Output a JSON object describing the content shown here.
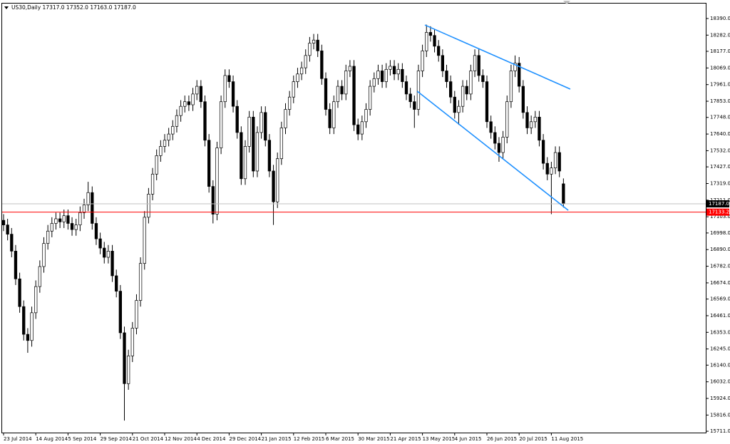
{
  "chart_data": {
    "type": "candlestick",
    "title": "US30,Daily  17317.0 17352.0 17163.0 17187.0",
    "categories": [
      "23 Jul 2014",
      null,
      null,
      null,
      null,
      null,
      null,
      null,
      "14 Aug 2014",
      null,
      null,
      null,
      null,
      null,
      null,
      null,
      "5 Sep 2014",
      null,
      null,
      null,
      null,
      null,
      null,
      null,
      "29 Sep 2014",
      null,
      null,
      null,
      null,
      null,
      null,
      null,
      "21 Oct 2014",
      null,
      null,
      null,
      null,
      null,
      null,
      null,
      "12 Nov 2014",
      null,
      null,
      null,
      null,
      null,
      null,
      null,
      "4 Dec 2014",
      null,
      null,
      null,
      null,
      null,
      null,
      null,
      "29 Dec 2014",
      null,
      null,
      null,
      null,
      null,
      null,
      null,
      "21 Jan 2015",
      null,
      null,
      null,
      null,
      null,
      null,
      null,
      "12 Feb 2015",
      null,
      null,
      null,
      null,
      null,
      null,
      null,
      "6 Mar 2015",
      null,
      null,
      null,
      null,
      null,
      null,
      null,
      "30 Mar 2015",
      null,
      null,
      null,
      null,
      null,
      null,
      null,
      "21 Apr 2015",
      null,
      null,
      null,
      null,
      null,
      null,
      null,
      "13 May 2015",
      null,
      null,
      null,
      null,
      null,
      null,
      null,
      "4 Jun 2015",
      null,
      null,
      null,
      null,
      null,
      null,
      null,
      "26 Jun 2015",
      null,
      null,
      null,
      null,
      null,
      null,
      null,
      "20 Jul 2015",
      null,
      null,
      null,
      null,
      null,
      null,
      null,
      "11 Aug 2015",
      null,
      null,
      null
    ],
    "open": [
      17080,
      17050,
      16990,
      16880,
      16700,
      16520,
      16340,
      16300,
      16480,
      16650,
      16780,
      16930,
      17010,
      17060,
      17090,
      17070,
      17110,
      17060,
      17020,
      17050,
      17130,
      17180,
      17260,
      17060,
      16960,
      16900,
      16840,
      16880,
      16720,
      16620,
      16350,
      16020,
      16200,
      16380,
      16560,
      16800,
      17100,
      17250,
      17380,
      17500,
      17560,
      17600,
      17640,
      17690,
      17760,
      17820,
      17850,
      17830,
      17900,
      17950,
      17850,
      17600,
      17300,
      17120,
      17550,
      17850,
      18020,
      17980,
      17820,
      17650,
      17350,
      17560,
      17750,
      17400,
      17650,
      17780,
      17600,
      17400,
      17200,
      17480,
      17680,
      17800,
      17880,
      17980,
      18030,
      18070,
      18150,
      18230,
      18250,
      18180,
      18000,
      17800,
      17680,
      17850,
      17950,
      17900,
      18050,
      18080,
      17700,
      17640,
      17720,
      17800,
      17950,
      18000,
      18050,
      17980,
      18060,
      18080,
      18030,
      18060,
      17980,
      17900,
      17850,
      17800,
      18050,
      18180,
      18300,
      18280,
      18210,
      18150,
      18050,
      17980,
      17880,
      17780,
      17820,
      17950,
      17900,
      18050,
      18150,
      18020,
      17980,
      17720,
      17650,
      17580,
      17520,
      17620,
      17850,
      18050,
      18100,
      17950,
      17780,
      17680,
      17720,
      17750,
      17600,
      17450,
      17380,
      17420,
      17520,
      17317
    ],
    "high": [
      17120,
      17090,
      17030,
      16920,
      16740,
      16560,
      16380,
      16520,
      16690,
      16820,
      16970,
      17050,
      17100,
      17130,
      17130,
      17150,
      17150,
      17100,
      17090,
      17170,
      17220,
      17330,
      17300,
      17100,
      17000,
      16940,
      16920,
      16920,
      16760,
      16660,
      16390,
      16240,
      16420,
      16600,
      16840,
      17140,
      17290,
      17420,
      17540,
      17600,
      17640,
      17680,
      17730,
      17800,
      17860,
      17890,
      17890,
      17940,
      17990,
      17990,
      17890,
      17640,
      17340,
      17590,
      17890,
      18060,
      18060,
      18020,
      17860,
      17690,
      17600,
      17790,
      17790,
      17690,
      17820,
      17820,
      17640,
      17440,
      17520,
      17720,
      17840,
      17920,
      18020,
      18070,
      18110,
      18190,
      18270,
      18290,
      18290,
      18220,
      18040,
      17840,
      17890,
      17990,
      17990,
      18090,
      18120,
      18120,
      17740,
      17760,
      17840,
      17990,
      18040,
      18090,
      18090,
      18100,
      18120,
      18120,
      18100,
      18100,
      18020,
      17940,
      17890,
      18090,
      18220,
      18350,
      18340,
      18320,
      18250,
      18190,
      18090,
      18020,
      17920,
      17860,
      17990,
      17990,
      18090,
      18190,
      18190,
      18060,
      18020,
      17760,
      17690,
      17620,
      17660,
      17890,
      18090,
      18150,
      18140,
      17990,
      17820,
      17760,
      17790,
      17790,
      17640,
      17490,
      17460,
      17560,
      17560,
      17352
    ],
    "low": [
      17010,
      16950,
      16840,
      16660,
      16480,
      16300,
      16220,
      16260,
      16440,
      16610,
      16740,
      16890,
      16970,
      17020,
      17030,
      17030,
      17020,
      16980,
      16980,
      17010,
      17090,
      17140,
      17020,
      16920,
      16860,
      16800,
      16800,
      16680,
      16580,
      16310,
      15780,
      15980,
      16160,
      16340,
      16520,
      16760,
      17060,
      17210,
      17340,
      17460,
      17520,
      17560,
      17600,
      17650,
      17720,
      17780,
      17790,
      17790,
      17860,
      17810,
      17560,
      17260,
      17060,
      17080,
      17510,
      17810,
      17940,
      17780,
      17610,
      17310,
      17310,
      17520,
      17360,
      17360,
      17610,
      17560,
      17360,
      17050,
      17160,
      17440,
      17640,
      17760,
      17840,
      17940,
      17990,
      18030,
      18110,
      18190,
      18140,
      17960,
      17760,
      17640,
      17640,
      17810,
      17860,
      17860,
      18010,
      17660,
      17600,
      17600,
      17680,
      17760,
      17910,
      17960,
      17940,
      17940,
      18020,
      17990,
      17990,
      17940,
      17860,
      17810,
      17680,
      17760,
      18010,
      18140,
      18240,
      18170,
      18110,
      18010,
      17940,
      17840,
      17740,
      17700,
      17780,
      17860,
      17860,
      18010,
      17980,
      17940,
      17680,
      17610,
      17540,
      17460,
      17480,
      17580,
      17810,
      18010,
      17910,
      17740,
      17640,
      17640,
      17680,
      17560,
      17410,
      17340,
      17120,
      17380,
      17360,
      17163
    ],
    "close": [
      17050,
      16990,
      16880,
      16700,
      16520,
      16340,
      16300,
      16480,
      16650,
      16780,
      16930,
      17010,
      17060,
      17090,
      17070,
      17110,
      17060,
      17020,
      17050,
      17130,
      17180,
      17260,
      17060,
      16960,
      16900,
      16840,
      16880,
      16720,
      16620,
      16350,
      16020,
      16200,
      16380,
      16560,
      16800,
      17100,
      17250,
      17380,
      17500,
      17560,
      17600,
      17640,
      17690,
      17760,
      17820,
      17850,
      17830,
      17900,
      17950,
      17850,
      17600,
      17300,
      17120,
      17550,
      17850,
      18020,
      17980,
      17820,
      17650,
      17350,
      17560,
      17750,
      17400,
      17650,
      17780,
      17600,
      17400,
      17200,
      17480,
      17680,
      17800,
      17880,
      17980,
      18030,
      18070,
      18150,
      18230,
      18250,
      18180,
      18000,
      17800,
      17680,
      17850,
      17950,
      17900,
      18050,
      18080,
      17700,
      17640,
      17720,
      17800,
      17950,
      18000,
      18050,
      17980,
      18060,
      18080,
      18030,
      18060,
      17980,
      17900,
      17850,
      17800,
      18050,
      18180,
      18300,
      18280,
      18210,
      18150,
      18050,
      17980,
      17880,
      17780,
      17820,
      17950,
      17900,
      18050,
      18150,
      18020,
      17980,
      17720,
      17650,
      17580,
      17520,
      17620,
      17850,
      18050,
      18100,
      17950,
      17780,
      17680,
      17720,
      17750,
      17600,
      17450,
      17380,
      17420,
      17520,
      17400,
      17187
    ],
    "up_color": "#ffffff",
    "down_color": "#000000",
    "outline_color": "#000000",
    "ylim": [
      15679,
      18487
    ],
    "yticks": [
      {
        "value": 18390,
        "label": "18390.0"
      },
      {
        "value": 18282,
        "label": "18282.0"
      },
      {
        "value": 18177,
        "label": "18177.0"
      },
      {
        "value": 18069,
        "label": "18069.0"
      },
      {
        "value": 17961,
        "label": "17961.0"
      },
      {
        "value": 17853,
        "label": "17853.0"
      },
      {
        "value": 17748,
        "label": "17748.0"
      },
      {
        "value": 17640,
        "label": "17640.0"
      },
      {
        "value": 17532,
        "label": "17532.0"
      },
      {
        "value": 17427,
        "label": "17427.0"
      },
      {
        "value": 17319,
        "label": "17319.0"
      },
      {
        "value": 17211,
        "label": "17211.0"
      },
      {
        "value": 17103,
        "label": "17103.0"
      },
      {
        "value": 16998,
        "label": "16998.0"
      },
      {
        "value": 16890,
        "label": "16890.0"
      },
      {
        "value": 16782,
        "label": "16782.0"
      },
      {
        "value": 16674,
        "label": "16674.0"
      },
      {
        "value": 16569,
        "label": "16569.0"
      },
      {
        "value": 16461,
        "label": "16461.0"
      },
      {
        "value": 16353,
        "label": "16353.0"
      },
      {
        "value": 16245,
        "label": "16245.0"
      },
      {
        "value": 16140,
        "label": "16140.0"
      },
      {
        "value": 16032,
        "label": "16032.0"
      },
      {
        "value": 15924,
        "label": "15924.0"
      },
      {
        "value": 15816,
        "label": "15816.0"
      },
      {
        "value": 15711,
        "label": "15711.0"
      }
    ],
    "price_line": {
      "value": 17187,
      "label": "17187.0",
      "color": "#c0c0c0"
    },
    "horizontal_lines": [
      {
        "value": 17133.2,
        "label": "17133.2",
        "color": "#ff0000"
      }
    ],
    "trend_lines": [
      {
        "start": [
          104.6,
          18348
        ],
        "end": [
          140.7,
          17932
        ],
        "color": "#1e90ff"
      },
      {
        "start": [
          102.7,
          17918
        ],
        "end": [
          140.2,
          17145
        ],
        "color": "#1e90ff"
      }
    ],
    "grid": false
  }
}
